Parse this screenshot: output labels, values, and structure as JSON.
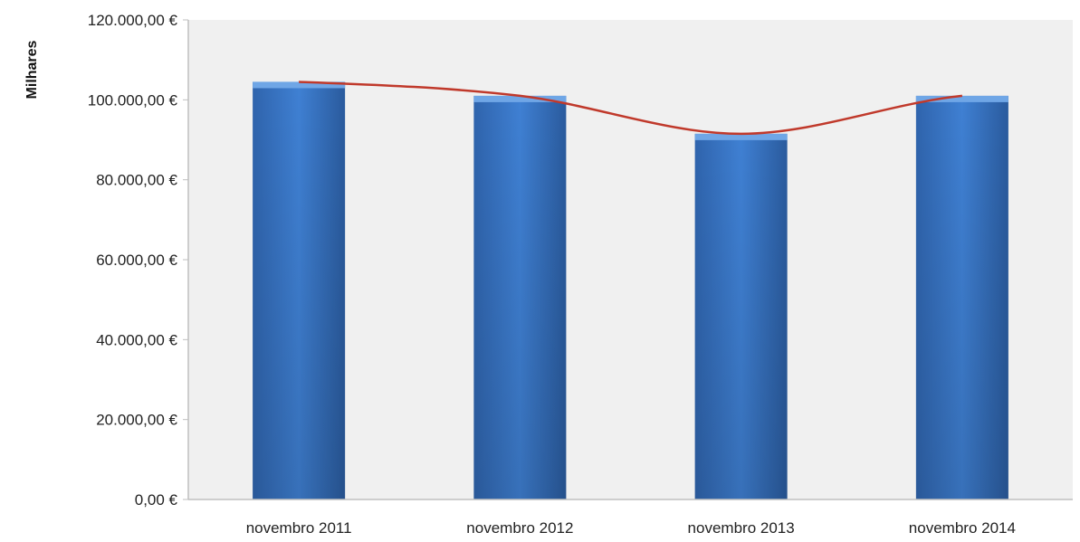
{
  "chart_data": {
    "type": "bar",
    "title": "",
    "xlabel": "",
    "ylabel": "Milhares",
    "ylim": [
      0,
      120000
    ],
    "yticks": [
      0,
      20000,
      40000,
      60000,
      80000,
      100000,
      120000
    ],
    "ytick_labels": [
      "0,00 €",
      "20.000,00 €",
      "40.000,00 €",
      "60.000,00 €",
      "80.000,00 €",
      "100.000,00 €",
      "120.000,00 €"
    ],
    "categories": [
      "novembro 2011",
      "novembro 2012",
      "novembro 2013",
      "novembro 2014"
    ],
    "values": [
      104500,
      101000,
      91500,
      101000
    ],
    "trendline": {
      "type": "polynomial",
      "color": "#c0392b"
    },
    "grid": false,
    "legend": "none",
    "colors": {
      "bar": "#3a78c9",
      "bar_top": "#6fa6e6",
      "bar_dark": "#2b5c9c",
      "plot_bg": "#f0f0f0",
      "axis": "#bfbfbf"
    }
  }
}
